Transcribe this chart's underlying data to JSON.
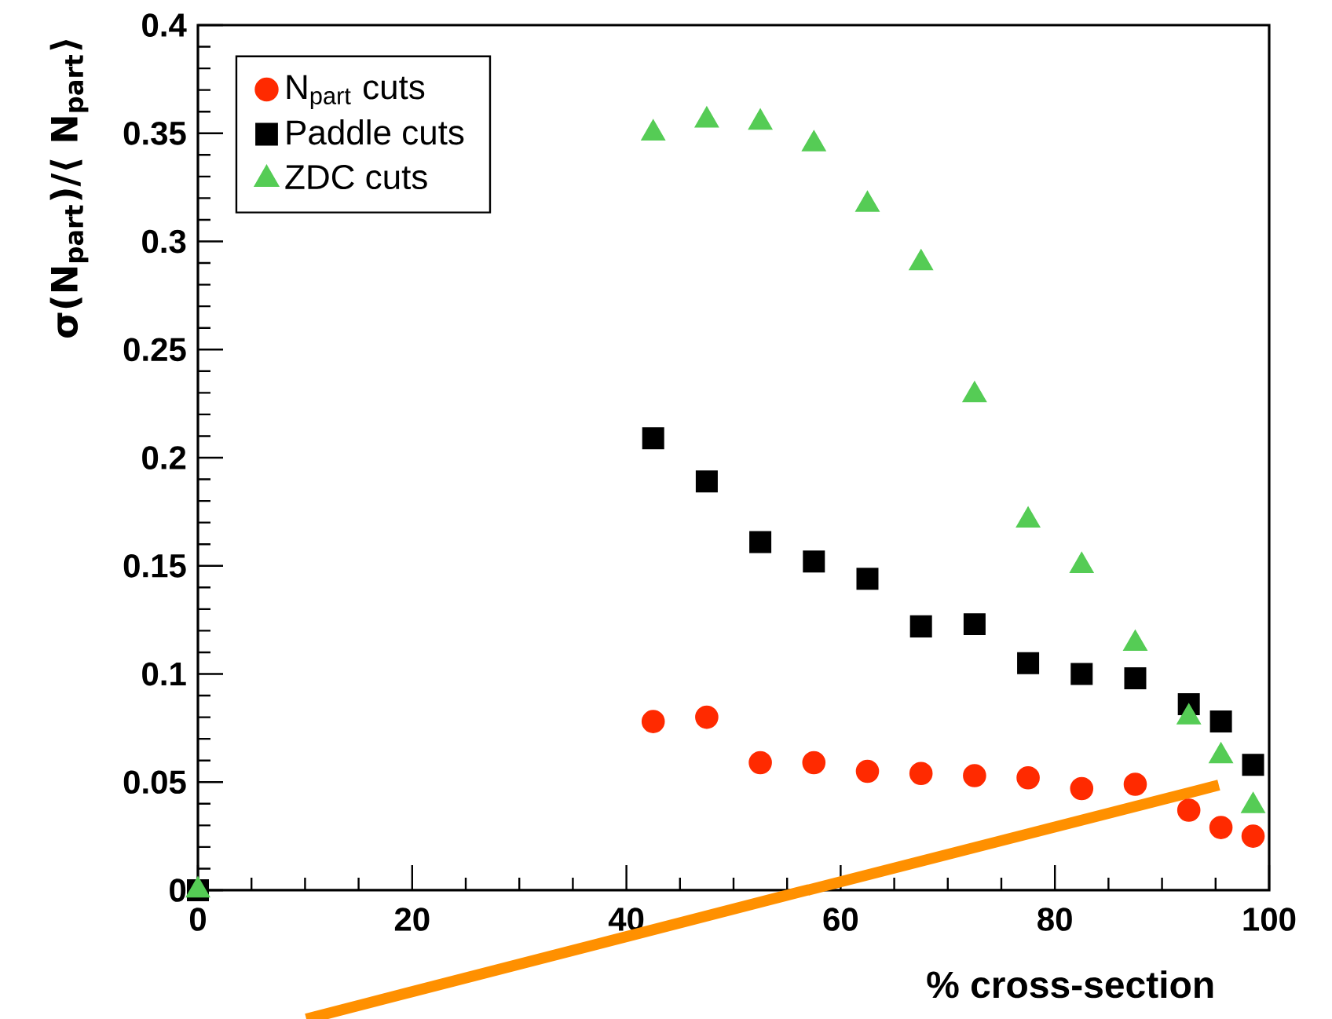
{
  "chart_data": {
    "type": "scatter",
    "xlabel": "% cross-section",
    "ylabel": "σ(N$_{part}$)/⟨ N$_{part}$⟩",
    "xlim": [
      0,
      100
    ],
    "ylim": [
      0,
      0.4
    ],
    "xticks": [
      0,
      20,
      40,
      60,
      80,
      100
    ],
    "yticks": [
      0,
      0.05,
      0.1,
      0.15,
      0.2,
      0.25,
      0.3,
      0.35,
      0.4
    ],
    "legend": "top left",
    "series": [
      {
        "name": "N$_{part}$ cuts",
        "color": "#ff2a00",
        "marker": "circle",
        "x": [
          42.5,
          47.5,
          52.5,
          57.5,
          62.5,
          67.5,
          72.5,
          77.5,
          82.5,
          87.5,
          92.5,
          95.5,
          98.5
        ],
        "values": [
          0.078,
          0.08,
          0.059,
          0.059,
          0.055,
          0.054,
          0.053,
          0.052,
          0.047,
          0.049,
          0.037,
          0.029,
          0.025
        ]
      },
      {
        "name": "Paddle cuts",
        "color": "#000000",
        "marker": "square",
        "x": [
          0,
          42.5,
          47.5,
          52.5,
          57.5,
          62.5,
          67.5,
          72.5,
          77.5,
          82.5,
          87.5,
          92.5,
          95.5,
          98.5
        ],
        "values": [
          0,
          0.209,
          0.189,
          0.161,
          0.152,
          0.144,
          0.122,
          0.123,
          0.105,
          0.1,
          0.098,
          0.086,
          0.078,
          0.058
        ]
      },
      {
        "type": "line",
        "color": "#ff9000",
        "line_style": "solid",
        "x": [
          56.9,
          95.3
        ],
        "values": [
          0,
          0.0486
        ]
      },
      {
        "name": "ZDC cuts",
        "color": "#55cc55",
        "marker": "triangle",
        "x": [
          0,
          42.5,
          47.5,
          52.5,
          57.5,
          62.5,
          67.5,
          72.5,
          77.5,
          82.5,
          87.5,
          92.5,
          95.5,
          98.5
        ],
        "values": [
          0,
          0.35,
          0.356,
          0.355,
          0.345,
          0.317,
          0.29,
          0.229,
          0.171,
          0.15,
          0.114,
          0.08,
          0.062,
          0.039
        ]
      }
    ]
  }
}
